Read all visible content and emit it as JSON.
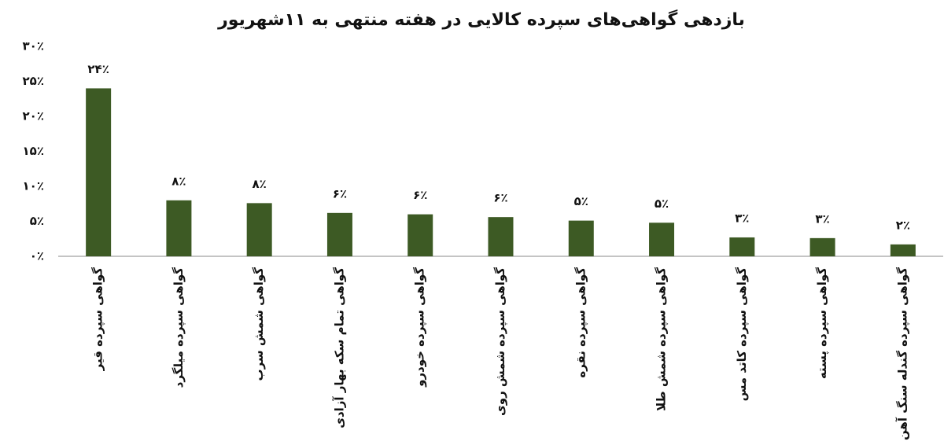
{
  "chart_data": {
    "type": "bar",
    "title": "بازدهی گواهی‌های سپرده کالایی در هفته منتهی به ۱۱شهریور",
    "categories": [
      "گواهی سپرده قیر",
      "گواهی سپرده میلگرد",
      "گواهی شمش سرب",
      "گواهی تمام سکه بهار آزادی",
      "گواهی سپرده خودرو",
      "گواهی سپرده شمش روی",
      "گواهی سپرده نقره",
      "گواهی سپرده شمش طلا",
      "گواهی سپرده کاتد مس",
      "گواهی سپرده پسته",
      "گواهی سپرده گندله سنگ آهن"
    ],
    "values": [
      24,
      8,
      7.6,
      6.2,
      6,
      5.6,
      5.1,
      4.8,
      2.7,
      2.6,
      1.7
    ],
    "value_labels": [
      "۲۴٪",
      "۸٪",
      "۸٪",
      "۶٪",
      "۶٪",
      "۶٪",
      "۵٪",
      "۵٪",
      "۳٪",
      "۳٪",
      "۲٪"
    ],
    "color": "#3d5a24",
    "ylim": [
      0,
      30
    ],
    "yticks": [
      {
        "value": 0,
        "label": "۰٪"
      },
      {
        "value": 5,
        "label": "۵٪"
      },
      {
        "value": 10,
        "label": "۱۰٪"
      },
      {
        "value": 15,
        "label": "۱۵٪"
      },
      {
        "value": 20,
        "label": "۲۰٪"
      },
      {
        "value": 25,
        "label": "۲۵٪"
      },
      {
        "value": 30,
        "label": "۳۰٪"
      }
    ],
    "grid": false
  }
}
